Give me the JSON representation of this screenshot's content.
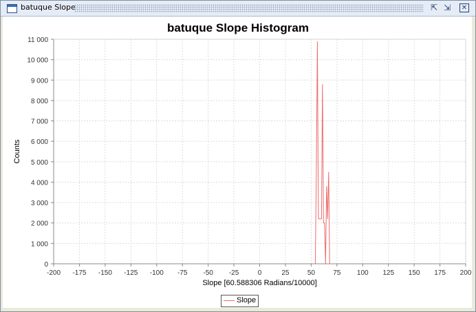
{
  "window": {
    "title": "batuque Slope",
    "buttons": {
      "minimize": "⇱",
      "maximize": "⇲",
      "close": "✕"
    }
  },
  "chart_data": {
    "type": "line",
    "title": "batuque Slope Histogram",
    "xlabel": "Slope [60.588306 Radians/10000]",
    "ylabel": "Counts",
    "xlim": [
      -200,
      200
    ],
    "ylim": [
      0,
      11000
    ],
    "x_ticks": [
      "-200",
      "-175",
      "-150",
      "-125",
      "-100",
      "-75",
      "-50",
      "-25",
      "0",
      "25",
      "50",
      "75",
      "100",
      "125",
      "150",
      "175",
      "200"
    ],
    "y_ticks": [
      "0",
      "1 000",
      "2 000",
      "3 000",
      "4 000",
      "5 000",
      "6 000",
      "7 000",
      "8 000",
      "9 000",
      "10 000",
      "11 000"
    ],
    "grid": true,
    "legend_position": "bottom",
    "series": [
      {
        "name": "Slope",
        "color": "#ef6a6a",
        "x": [
          54,
          55,
          56,
          57,
          58,
          59,
          60,
          61,
          62,
          63,
          64,
          65,
          66,
          67,
          68,
          69,
          70
        ],
        "y": [
          0,
          4500,
          10900,
          2200,
          2200,
          2200,
          2200,
          8800,
          2000,
          2000,
          0,
          3800,
          2200,
          4500,
          0,
          0,
          0
        ]
      }
    ]
  }
}
